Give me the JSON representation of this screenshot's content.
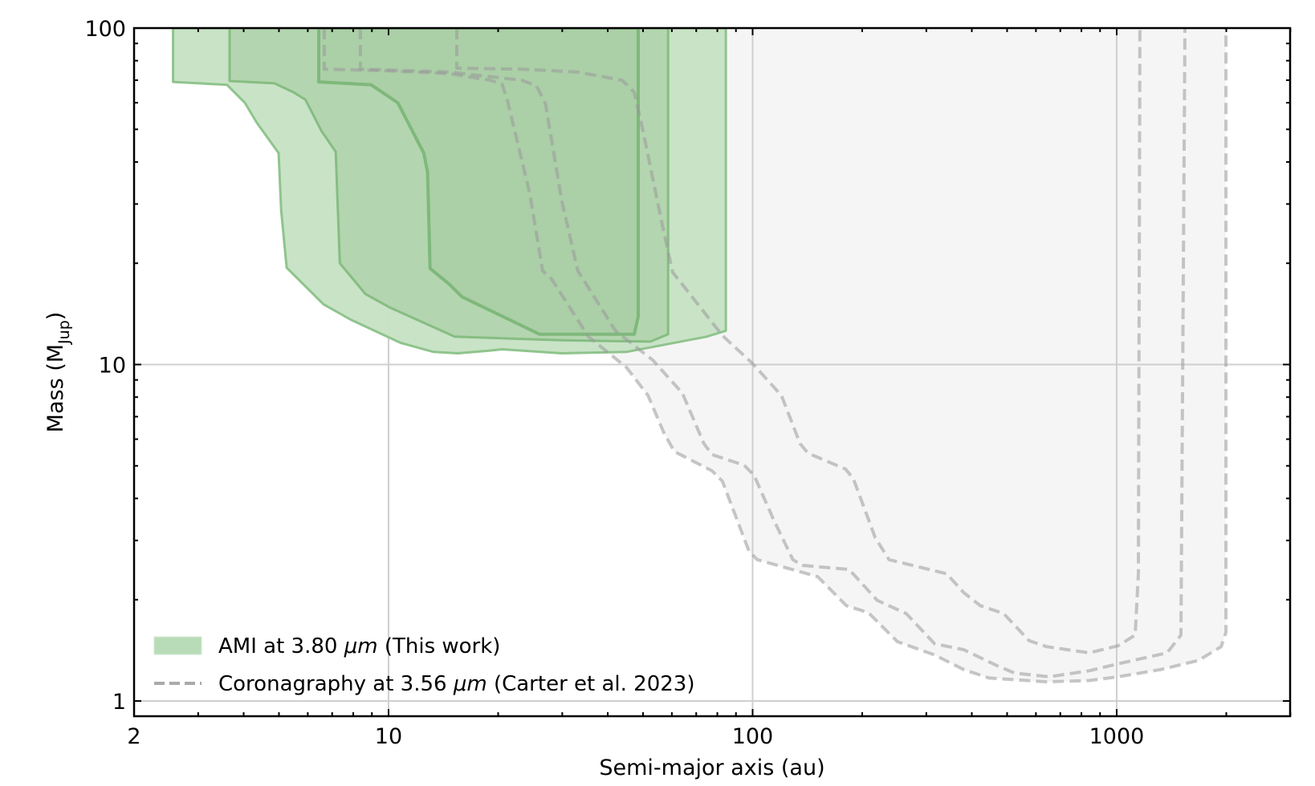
{
  "chart_data": {
    "type": "area",
    "title": "",
    "xlabel": "Semi-major axis (au)",
    "ylabel": "Mass (M_Jup)",
    "ylabel_parts": {
      "main": "Mass (M",
      "sub": "Jup",
      "close": ")"
    },
    "xscale": "log",
    "yscale": "log",
    "xlim": [
      2,
      3000
    ],
    "ylim": [
      1,
      100
    ],
    "grid": true,
    "xticks": [
      {
        "value": 2,
        "label": "2"
      },
      {
        "value": 10,
        "label": "10"
      },
      {
        "value": 100,
        "label": "100"
      },
      {
        "value": 1000,
        "label": "1000"
      }
    ],
    "yticks": [
      {
        "value": 1,
        "label": "1"
      },
      {
        "value": 10,
        "label": "10"
      },
      {
        "value": 100,
        "label": "100"
      }
    ],
    "legend": {
      "position": "lower left",
      "entries": [
        {
          "label_prefix": "AMI at 3.80 ",
          "label_unit": "μm",
          "label_suffix": " (This work)",
          "style": "filled-patch",
          "color": "#b9dcb8"
        },
        {
          "label_prefix": "Coronagraphy at 3.56 ",
          "label_unit": "μm",
          "label_suffix": " (Carter et al. 2023)",
          "style": "dashed-line",
          "color": "#aaaaaa"
        }
      ]
    },
    "series": [
      {
        "name": "AMI at 3.80 μm (This work) - outer contour",
        "kind": "filled-contour",
        "fill": "#c6e1c4",
        "edge": "#8fc48c",
        "edge_width": 3,
        "points": [
          [
            2.56,
            100
          ],
          [
            2.56,
            69.2
          ],
          [
            3.6,
            67.8
          ],
          [
            4.03,
            60.0
          ],
          [
            4.35,
            52.3
          ],
          [
            4.99,
            42.5
          ],
          [
            5.07,
            28.8
          ],
          [
            5.25,
            19.4
          ],
          [
            6.63,
            15.1
          ],
          [
            7.87,
            13.6
          ],
          [
            10.8,
            11.6
          ],
          [
            13.3,
            10.9
          ],
          [
            15.5,
            10.8
          ],
          [
            19.0,
            11.0
          ],
          [
            20.5,
            11.1
          ],
          [
            29.9,
            10.8
          ],
          [
            45.0,
            10.9
          ],
          [
            74.7,
            12.1
          ],
          [
            84.4,
            12.6
          ],
          [
            84.4,
            100
          ]
        ]
      },
      {
        "name": "AMI at 3.80 μm (This work) - middle contour",
        "kind": "filled-contour",
        "fill": "#b2d4ae",
        "edge": "#86bd82",
        "edge_width": 3,
        "points": [
          [
            3.66,
            100
          ],
          [
            3.66,
            69.6
          ],
          [
            4.86,
            68.5
          ],
          [
            5.47,
            64.5
          ],
          [
            5.91,
            61.3
          ],
          [
            6.54,
            49.5
          ],
          [
            7.16,
            42.9
          ],
          [
            7.35,
            20.0
          ],
          [
            8.64,
            16.2
          ],
          [
            10.05,
            14.8
          ],
          [
            11.1,
            14.1
          ],
          [
            15.2,
            12.1
          ],
          [
            29.9,
            11.8
          ],
          [
            52.4,
            11.7
          ],
          [
            58.6,
            12.3
          ],
          [
            58.6,
            100
          ]
        ]
      },
      {
        "name": "AMI at 3.80 μm (This work) - inner contour",
        "kind": "filled-contour",
        "fill": "#abcfa7",
        "edge": "#7fb87b",
        "edge_width": 4,
        "points": [
          [
            6.43,
            100
          ],
          [
            6.43,
            69.2
          ],
          [
            8.96,
            67.8
          ],
          [
            10.6,
            60.0
          ],
          [
            12.5,
            42.5
          ],
          [
            12.8,
            37.3
          ],
          [
            13.0,
            19.3
          ],
          [
            14.7,
            17.3
          ],
          [
            15.9,
            15.9
          ],
          [
            26.0,
            12.3
          ],
          [
            47.3,
            12.3
          ],
          [
            48.5,
            13.9
          ],
          [
            48.5,
            100
          ]
        ]
      },
      {
        "name": "Coronagraphy at 3.56 μm (Carter et al. 2023) - curve A",
        "kind": "dashed-contour",
        "color": "#bcbcbc",
        "fill": "#f5f5f5",
        "points": [
          [
            6.66,
            100
          ],
          [
            6.66,
            75.5
          ],
          [
            9.8,
            74.7
          ],
          [
            14.7,
            73.2
          ],
          [
            19.0,
            70.0
          ],
          [
            20.5,
            68.1
          ],
          [
            21.2,
            61.0
          ],
          [
            24.4,
            32.4
          ],
          [
            26.5,
            19.0
          ],
          [
            28.0,
            18.0
          ],
          [
            35.4,
            12.1
          ],
          [
            45.0,
            9.81
          ],
          [
            51.6,
            8.09
          ],
          [
            57.1,
            6.25
          ],
          [
            61.0,
            5.51
          ],
          [
            77.4,
            4.83
          ],
          [
            82.6,
            4.5
          ],
          [
            91.5,
            3.36
          ],
          [
            97.7,
            2.79
          ],
          [
            103,
            2.63
          ],
          [
            137,
            2.41
          ],
          [
            151,
            2.34
          ],
          [
            181,
            1.92
          ],
          [
            208,
            1.83
          ],
          [
            250,
            1.5
          ],
          [
            316,
            1.37
          ],
          [
            380,
            1.24
          ],
          [
            446,
            1.17
          ],
          [
            640,
            1.14
          ],
          [
            841,
            1.15
          ],
          [
            1010,
            1.18
          ],
          [
            1322,
            1.24
          ],
          [
            1678,
            1.32
          ],
          [
            1936,
            1.45
          ],
          [
            1996,
            1.6
          ],
          [
            1996,
            100
          ]
        ]
      },
      {
        "name": "Coronagraphy at 3.56 μm (Carter et al. 2023) - curve B",
        "kind": "dashed-contour",
        "color": "#bcbcbc",
        "fill": "#f5f5f5",
        "points": [
          [
            8.37,
            100
          ],
          [
            8.37,
            75.5
          ],
          [
            14.7,
            74.0
          ],
          [
            23.2,
            70.0
          ],
          [
            25.5,
            67.3
          ],
          [
            27.0,
            59.4
          ],
          [
            29.9,
            30.7
          ],
          [
            33.1,
            19.0
          ],
          [
            34.5,
            17.7
          ],
          [
            42.0,
            12.6
          ],
          [
            53.2,
            10.3
          ],
          [
            64.1,
            8.23
          ],
          [
            73.5,
            5.82
          ],
          [
            77.4,
            5.4
          ],
          [
            94.8,
            5.02
          ],
          [
            101,
            4.68
          ],
          [
            114,
            3.47
          ],
          [
            129,
            2.63
          ],
          [
            137,
            2.53
          ],
          [
            184,
            2.46
          ],
          [
            190,
            2.37
          ],
          [
            220,
            1.99
          ],
          [
            264,
            1.82
          ],
          [
            316,
            1.48
          ],
          [
            380,
            1.42
          ],
          [
            472,
            1.27
          ],
          [
            525,
            1.21
          ],
          [
            653,
            1.18
          ],
          [
            841,
            1.23
          ],
          [
            1010,
            1.29
          ],
          [
            1376,
            1.39
          ],
          [
            1501,
            1.57
          ],
          [
            1540,
            100
          ]
        ]
      },
      {
        "name": "Coronagraphy at 3.56 μm (Carter et al. 2023) - curve C",
        "kind": "dashed-contour",
        "color": "#bcbcbc",
        "fill": "#f5f5f5",
        "points": [
          [
            15.4,
            100
          ],
          [
            15.4,
            76.0
          ],
          [
            23.2,
            75.5
          ],
          [
            33.1,
            74.0
          ],
          [
            43.8,
            70.0
          ],
          [
            47.3,
            64.5
          ],
          [
            49.8,
            50.4
          ],
          [
            56.5,
            26.0
          ],
          [
            60.3,
            18.8
          ],
          [
            64.1,
            17.3
          ],
          [
            82.6,
            12.2
          ],
          [
            99.7,
            10.1
          ],
          [
            120,
            8.09
          ],
          [
            135,
            5.82
          ],
          [
            142,
            5.45
          ],
          [
            180,
            4.89
          ],
          [
            189,
            4.58
          ],
          [
            209,
            3.42
          ],
          [
            217,
            3.06
          ],
          [
            237,
            2.63
          ],
          [
            341,
            2.39
          ],
          [
            380,
            2.1
          ],
          [
            422,
            1.92
          ],
          [
            489,
            1.82
          ],
          [
            575,
            1.51
          ],
          [
            643,
            1.45
          ],
          [
            841,
            1.39
          ],
          [
            1010,
            1.46
          ],
          [
            1124,
            1.57
          ],
          [
            1147,
            2.39
          ],
          [
            1158,
            100
          ]
        ]
      }
    ]
  }
}
